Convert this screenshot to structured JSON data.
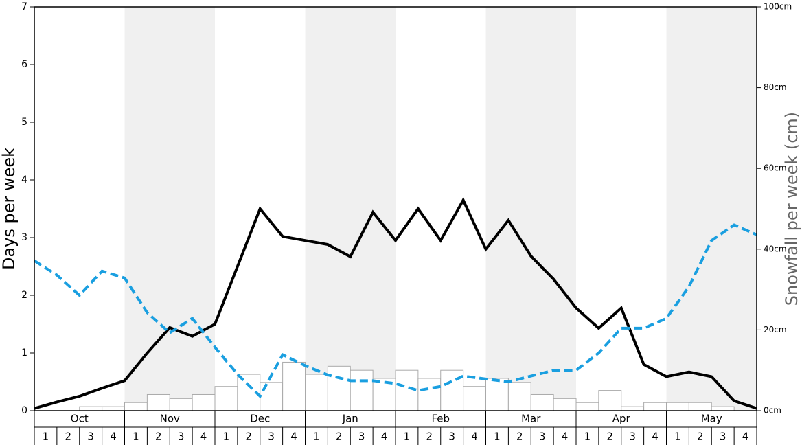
{
  "chart_data": {
    "type": "combo",
    "ylabel": "Days per week",
    "y2label": "Snowfall per week (cm)",
    "months": [
      "Oct",
      "Nov",
      "Dec",
      "Jan",
      "Feb",
      "Mar",
      "Apr",
      "May"
    ],
    "weeks": [
      1,
      2,
      3,
      4
    ],
    "ylim": [
      0,
      7
    ],
    "yticks": [
      0,
      1,
      2,
      3,
      4,
      5,
      6,
      7
    ],
    "y2lim": [
      0,
      100
    ],
    "y2ticks": [
      {
        "value": 0,
        "label": "0cm"
      },
      {
        "value": 20,
        "label": "20cm"
      },
      {
        "value": 40,
        "label": "40cm"
      },
      {
        "value": 60,
        "label": "60cm"
      },
      {
        "value": 80,
        "label": "80cm"
      },
      {
        "value": 100,
        "label": "100cm"
      }
    ],
    "series": [
      {
        "type": "line",
        "color": "#000000",
        "dashed": false,
        "values": [
          0.04,
          0.15,
          0.25,
          0.39,
          0.52,
          1.0,
          1.44,
          1.29,
          1.5,
          2.5,
          3.5,
          3.02,
          2.95,
          2.88,
          2.67,
          3.44,
          2.95,
          3.5,
          2.95,
          3.65,
          2.8,
          3.3,
          2.68,
          2.28,
          1.78,
          1.43,
          1.78,
          0.8,
          0.59,
          0.67,
          0.59,
          0.17,
          0.04
        ]
      },
      {
        "type": "line",
        "color": "#1a9fe0",
        "dashed": true,
        "values": [
          2.6,
          2.35,
          2.0,
          2.42,
          2.3,
          1.7,
          1.35,
          1.6,
          1.1,
          0.63,
          0.25,
          0.97,
          0.78,
          0.62,
          0.52,
          0.52,
          0.47,
          0.35,
          0.42,
          0.6,
          0.55,
          0.5,
          0.6,
          0.7,
          0.7,
          1.0,
          1.43,
          1.43,
          1.6,
          2.15,
          2.95,
          3.22,
          3.05
        ]
      },
      {
        "type": "bar",
        "axis": "y2",
        "color": "#ffffff",
        "edge": "#aaaaaa",
        "values": [
          0,
          0,
          1,
          1,
          2,
          4,
          3,
          4,
          6,
          9,
          7,
          12,
          9,
          11,
          10,
          8,
          10,
          8,
          10,
          6,
          8,
          7,
          4,
          3,
          2,
          5,
          1,
          2,
          2,
          2,
          1,
          0
        ]
      }
    ]
  }
}
